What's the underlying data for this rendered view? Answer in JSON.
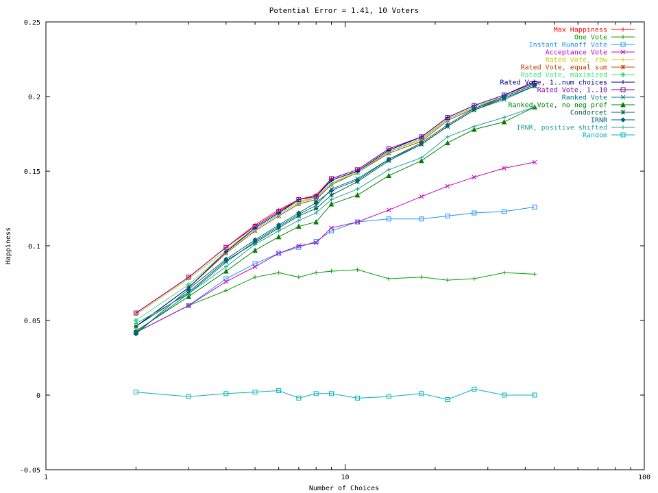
{
  "chart_data": {
    "type": "line",
    "title": "Potential Error = 1.41, 10 Voters",
    "xlabel": "Number of Choices",
    "ylabel": "Happiness",
    "x_scale": "log",
    "xlim": [
      1,
      100
    ],
    "ylim": [
      -0.05,
      0.25
    ],
    "x_ticks": [
      1,
      10,
      100
    ],
    "x_tick_labels": [
      "1",
      "10",
      "100"
    ],
    "y_ticks": [
      -0.05,
      0,
      0.05,
      0.1,
      0.15,
      0.2,
      0.25
    ],
    "y_tick_labels": [
      "-0.05",
      "0",
      "0.05",
      "0.1",
      "0.15",
      "0.2",
      "0.25"
    ],
    "grid": false,
    "legend_position": "top-right",
    "x": [
      2,
      3,
      4,
      5,
      6,
      7,
      8,
      9,
      11,
      14,
      18,
      22,
      27,
      34,
      43
    ],
    "series": [
      {
        "name": "Max Happiness",
        "color": "#ff0000",
        "marker": "plus",
        "values": [
          0.055,
          0.079,
          0.099,
          0.114,
          0.124,
          0.131,
          0.134,
          0.145,
          0.151,
          0.165,
          0.173,
          0.186,
          0.194,
          0.201,
          0.209
        ]
      },
      {
        "name": "One Vote",
        "color": "#00a000",
        "marker": "plus",
        "values": [
          0.042,
          0.06,
          0.07,
          0.079,
          0.082,
          0.079,
          0.082,
          0.083,
          0.084,
          0.078,
          0.079,
          0.077,
          0.078,
          0.082,
          0.081
        ]
      },
      {
        "name": "Instant Runoff Vote",
        "color": "#1e90ff",
        "marker": "square",
        "values": [
          0.042,
          0.06,
          0.078,
          0.088,
          0.095,
          0.099,
          0.103,
          0.11,
          0.116,
          0.118,
          0.118,
          0.12,
          0.122,
          0.123,
          0.126
        ]
      },
      {
        "name": "Acceptance Vote",
        "color": "#c000c0",
        "marker": "x",
        "values": [
          0.042,
          0.06,
          0.076,
          0.086,
          0.095,
          0.1,
          0.102,
          0.112,
          0.116,
          0.124,
          0.133,
          0.14,
          0.146,
          0.152,
          0.156
        ]
      },
      {
        "name": "Rated Vote, raw",
        "color": "#c8c800",
        "marker": "plus",
        "values": [
          0.054,
          0.078,
          0.097,
          0.112,
          0.122,
          0.13,
          0.132,
          0.142,
          0.15,
          0.163,
          0.171,
          0.185,
          0.193,
          0.2,
          0.208
        ]
      },
      {
        "name": "Rated Vote, equal sum",
        "color": "#c04000",
        "marker": "star",
        "values": [
          0.046,
          0.072,
          0.095,
          0.11,
          0.12,
          0.128,
          0.131,
          0.141,
          0.149,
          0.162,
          0.17,
          0.184,
          0.192,
          0.199,
          0.207
        ]
      },
      {
        "name": "Rated Vote, maximized",
        "color": "#40e080",
        "marker": "diamond",
        "values": [
          0.05,
          0.074,
          0.096,
          0.111,
          0.121,
          0.129,
          0.132,
          0.142,
          0.149,
          0.163,
          0.172,
          0.185,
          0.193,
          0.2,
          0.208
        ]
      },
      {
        "name": "Rated Vote, 1..num choices",
        "color": "#000080",
        "marker": "plus",
        "values": [
          0.046,
          0.072,
          0.096,
          0.112,
          0.122,
          0.131,
          0.133,
          0.144,
          0.15,
          0.164,
          0.173,
          0.186,
          0.194,
          0.201,
          0.21
        ]
      },
      {
        "name": "Rated Vote, 1..10",
        "color": "#8000a0",
        "marker": "square",
        "values": [
          0.055,
          0.079,
          0.099,
          0.113,
          0.123,
          0.131,
          0.133,
          0.145,
          0.151,
          0.165,
          0.173,
          0.186,
          0.194,
          0.201,
          0.209
        ]
      },
      {
        "name": "Ranked Vote",
        "color": "#008080",
        "marker": "x",
        "values": [
          0.042,
          0.068,
          0.089,
          0.103,
          0.113,
          0.121,
          0.127,
          0.138,
          0.145,
          0.158,
          0.168,
          0.18,
          0.191,
          0.198,
          0.207
        ]
      },
      {
        "name": "Ranked Vote, no neg pref",
        "color": "#008000",
        "marker": "triangle",
        "values": [
          0.043,
          0.066,
          0.083,
          0.097,
          0.106,
          0.113,
          0.116,
          0.128,
          0.134,
          0.147,
          0.157,
          0.169,
          0.178,
          0.183,
          0.193
        ]
      },
      {
        "name": "Condorcet",
        "color": "#006040",
        "marker": "star",
        "values": [
          0.046,
          0.069,
          0.09,
          0.102,
          0.112,
          0.12,
          0.125,
          0.134,
          0.143,
          0.157,
          0.168,
          0.18,
          0.191,
          0.199,
          0.207
        ]
      },
      {
        "name": "IRNR",
        "color": "#006080",
        "marker": "diamond",
        "values": [
          0.041,
          0.071,
          0.091,
          0.104,
          0.114,
          0.122,
          0.129,
          0.137,
          0.144,
          0.158,
          0.169,
          0.181,
          0.192,
          0.2,
          0.208
        ]
      },
      {
        "name": "IRNR, positive shifted",
        "color": "#20a0a0",
        "marker": "plus",
        "values": [
          0.048,
          0.068,
          0.086,
          0.101,
          0.11,
          0.117,
          0.122,
          0.131,
          0.138,
          0.151,
          0.159,
          0.173,
          0.18,
          0.186,
          0.193
        ]
      },
      {
        "name": "Random",
        "color": "#00b0c0",
        "marker": "square",
        "values": [
          0.002,
          -0.001,
          0.001,
          0.002,
          0.003,
          -0.002,
          0.001,
          0.001,
          -0.002,
          -0.001,
          0.001,
          -0.003,
          0.004,
          0.0,
          0.0
        ]
      }
    ]
  }
}
